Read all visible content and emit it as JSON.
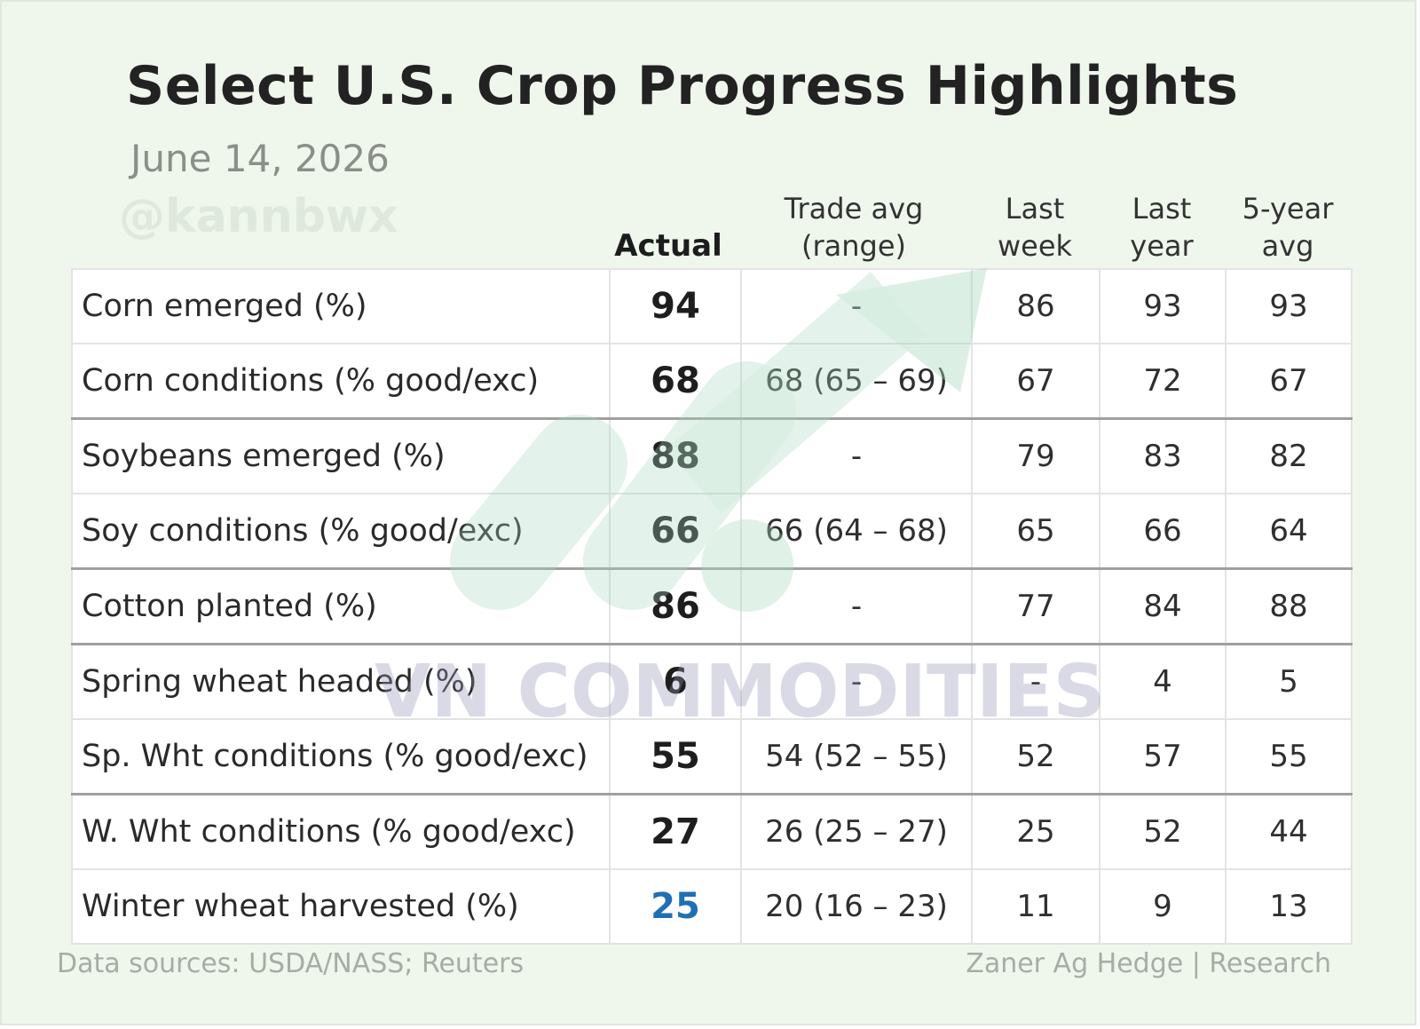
{
  "title": "Select U.S. Crop Progress Highlights",
  "subtitle": "June 14, 2026",
  "handle": "@kannbwx",
  "watermark_text": "VN COMMODITIES",
  "colors": {
    "background": "#eff6ec",
    "highlight_blue": "#1f6fb5",
    "logo_green": "#bfe3cf"
  },
  "columns": {
    "actual": "Actual",
    "trade_avg": [
      "Trade avg",
      "(range)"
    ],
    "last_week": [
      "Last",
      "week"
    ],
    "last_year": [
      "Last",
      "year"
    ],
    "five_year": [
      "5-year",
      "avg"
    ]
  },
  "rows": [
    {
      "label": "Corn emerged (%)",
      "actual": "94",
      "trade": "-",
      "last_week": "86",
      "last_year": "93",
      "five_year": "93"
    },
    {
      "label": "Corn conditions (% good/exc)",
      "actual": "68",
      "trade": "68 (65 – 69)",
      "last_week": "67",
      "last_year": "72",
      "five_year": "67"
    },
    {
      "label": "Soybeans emerged (%)",
      "actual": "88",
      "trade": "-",
      "last_week": "79",
      "last_year": "83",
      "five_year": "82"
    },
    {
      "label": "Soy conditions (% good/exc)",
      "actual": "66",
      "trade": "66 (64 – 68)",
      "last_week": "65",
      "last_year": "66",
      "five_year": "64"
    },
    {
      "label": "Cotton planted (%)",
      "actual": "86",
      "trade": "-",
      "last_week": "77",
      "last_year": "84",
      "five_year": "88"
    },
    {
      "label": "Spring wheat headed (%)",
      "actual": "6",
      "trade": "-",
      "last_week": "-",
      "last_year": "4",
      "five_year": "5"
    },
    {
      "label": "Sp. Wht conditions (% good/exc)",
      "actual": "55",
      "trade": "54 (52 – 55)",
      "last_week": "52",
      "last_year": "57",
      "five_year": "55"
    },
    {
      "label": "W. Wht conditions (% good/exc)",
      "actual": "27",
      "trade": "26 (25 – 27)",
      "last_week": "25",
      "last_year": "52",
      "five_year": "44"
    },
    {
      "label": "Winter wheat harvested (%)",
      "actual": "25",
      "trade": "20 (16 – 23)",
      "last_week": "11",
      "last_year": "9",
      "five_year": "13"
    }
  ],
  "footer": {
    "sources": "Data sources: USDA/NASS; Reuters",
    "credit": "Zaner Ag Hedge | Research"
  }
}
